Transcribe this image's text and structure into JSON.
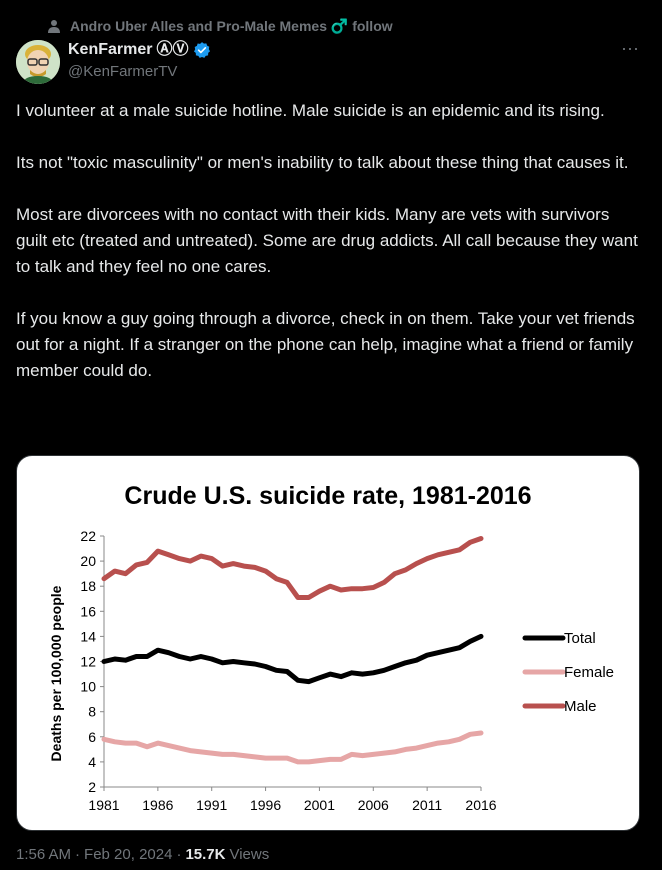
{
  "context": {
    "text": "Andro Uber Alles and Pro-Male Memes ♂️ follow"
  },
  "author": {
    "display_name": "KenFarmer",
    "name_glyphs": "ⒶⓋ",
    "handle": "@KenFarmerTV"
  },
  "more_label": "···",
  "tweet": {
    "paragraphs": [
      "I volunteer at a male suicide hotline. Male suicide is an epidemic and its rising.",
      "Its not \"toxic masculinity\" or men's inability to talk about these thing that causes it.",
      "Most are divorcees with no contact with their kids. Many are vets with survivors guilt etc (treated and untreated). Some are drug addicts. All call because they want to talk and they feel no one cares.",
      "If you know a guy going through a divorce, check in on them. Take your vet friends out for a night. If a stranger on the phone can help, imagine what a friend or family member could do."
    ]
  },
  "meta": {
    "time": "1:56 AM",
    "sep1": "·",
    "date": "Feb 20, 2024",
    "sep2": "·",
    "views_count": "15.7K",
    "views_label": "Views"
  },
  "colors": {
    "total": "#000000",
    "female": "#e6a6a6",
    "male": "#b8504e",
    "verified": "#1d9bf0"
  },
  "chart_data": {
    "type": "line",
    "title": "Crude U.S. suicide rate, 1981-2016",
    "xlabel": "",
    "ylabel": "Deaths per 100,000 people",
    "xlim": [
      1981,
      2016
    ],
    "ylim": [
      2,
      22
    ],
    "xticks": [
      1981,
      1986,
      1991,
      1996,
      2001,
      2006,
      2011,
      2016
    ],
    "yticks": [
      2,
      4,
      6,
      8,
      10,
      12,
      14,
      16,
      18,
      20,
      22
    ],
    "grid": false,
    "legend_position": "right",
    "x": [
      1981,
      1982,
      1983,
      1984,
      1985,
      1986,
      1987,
      1988,
      1989,
      1990,
      1991,
      1992,
      1993,
      1994,
      1995,
      1996,
      1997,
      1998,
      1999,
      2000,
      2001,
      2002,
      2003,
      2004,
      2005,
      2006,
      2007,
      2008,
      2009,
      2010,
      2011,
      2012,
      2013,
      2014,
      2015,
      2016
    ],
    "series": [
      {
        "name": "Total",
        "color": "#000000",
        "values": [
          12.0,
          12.2,
          12.1,
          12.4,
          12.4,
          12.9,
          12.7,
          12.4,
          12.2,
          12.4,
          12.2,
          11.9,
          12.0,
          11.9,
          11.8,
          11.6,
          11.3,
          11.2,
          10.5,
          10.4,
          10.7,
          11.0,
          10.8,
          11.1,
          11.0,
          11.1,
          11.3,
          11.6,
          11.9,
          12.1,
          12.5,
          12.7,
          12.9,
          13.1,
          13.6,
          14.0
        ]
      },
      {
        "name": "Female",
        "color": "#e6a6a6",
        "values": [
          5.8,
          5.6,
          5.5,
          5.5,
          5.2,
          5.5,
          5.3,
          5.1,
          4.9,
          4.8,
          4.7,
          4.6,
          4.6,
          4.5,
          4.4,
          4.3,
          4.3,
          4.3,
          4.0,
          4.0,
          4.1,
          4.2,
          4.2,
          4.6,
          4.5,
          4.6,
          4.7,
          4.8,
          5.0,
          5.1,
          5.3,
          5.5,
          5.6,
          5.8,
          6.2,
          6.3
        ]
      },
      {
        "name": "Male",
        "color": "#b8504e",
        "values": [
          18.6,
          19.2,
          19.0,
          19.7,
          19.9,
          20.8,
          20.5,
          20.2,
          20.0,
          20.4,
          20.2,
          19.6,
          19.8,
          19.6,
          19.5,
          19.2,
          18.6,
          18.3,
          17.1,
          17.1,
          17.6,
          18.0,
          17.7,
          17.8,
          17.8,
          17.9,
          18.3,
          19.0,
          19.3,
          19.8,
          20.2,
          20.5,
          20.7,
          20.9,
          21.5,
          21.8
        ]
      }
    ]
  }
}
